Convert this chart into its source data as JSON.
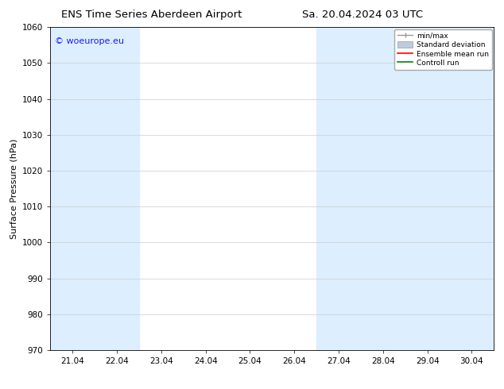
{
  "title": "ENS Time Series Aberdeen Airport",
  "title2": "Sa. 20.04.2024 03 UTC",
  "ylabel": "Surface Pressure (hPa)",
  "ylim": [
    970,
    1060
  ],
  "yticks": [
    970,
    980,
    990,
    1000,
    1010,
    1020,
    1030,
    1040,
    1050,
    1060
  ],
  "x_labels": [
    "21.04",
    "22.04",
    "23.04",
    "24.04",
    "25.04",
    "26.04",
    "27.04",
    "28.04",
    "29.04",
    "30.04"
  ],
  "x_positions": [
    0,
    1,
    2,
    3,
    4,
    5,
    6,
    7,
    8,
    9
  ],
  "x_min": -0.5,
  "x_max": 9.5,
  "shaded_bands": [
    {
      "x_start": -0.5,
      "x_end": 0.5,
      "color": "#ddeeff"
    },
    {
      "x_start": 0.5,
      "x_end": 1.5,
      "color": "#ddeeff"
    },
    {
      "x_start": 5.5,
      "x_end": 6.5,
      "color": "#ddeeff"
    },
    {
      "x_start": 6.5,
      "x_end": 7.5,
      "color": "#ddeeff"
    },
    {
      "x_start": 7.5,
      "x_end": 8.5,
      "color": "#ddeeff"
    },
    {
      "x_start": 8.5,
      "x_end": 9.5,
      "color": "#ddeeff"
    }
  ],
  "legend_labels": [
    "min/max",
    "Standard deviation",
    "Ensemble mean run",
    "Controll run"
  ],
  "legend_colors_line": [
    "#999999",
    "#bbccdd",
    "#ff0000",
    "#008800"
  ],
  "watermark": "© woeurope.eu",
  "watermark_color": "#1a1aff",
  "background_color": "#ffffff",
  "plot_bg_color": "#ffffff",
  "axis_color": "#000000",
  "tick_color": "#000000",
  "title_fontsize": 9.5,
  "label_fontsize": 8,
  "tick_fontsize": 7.5
}
